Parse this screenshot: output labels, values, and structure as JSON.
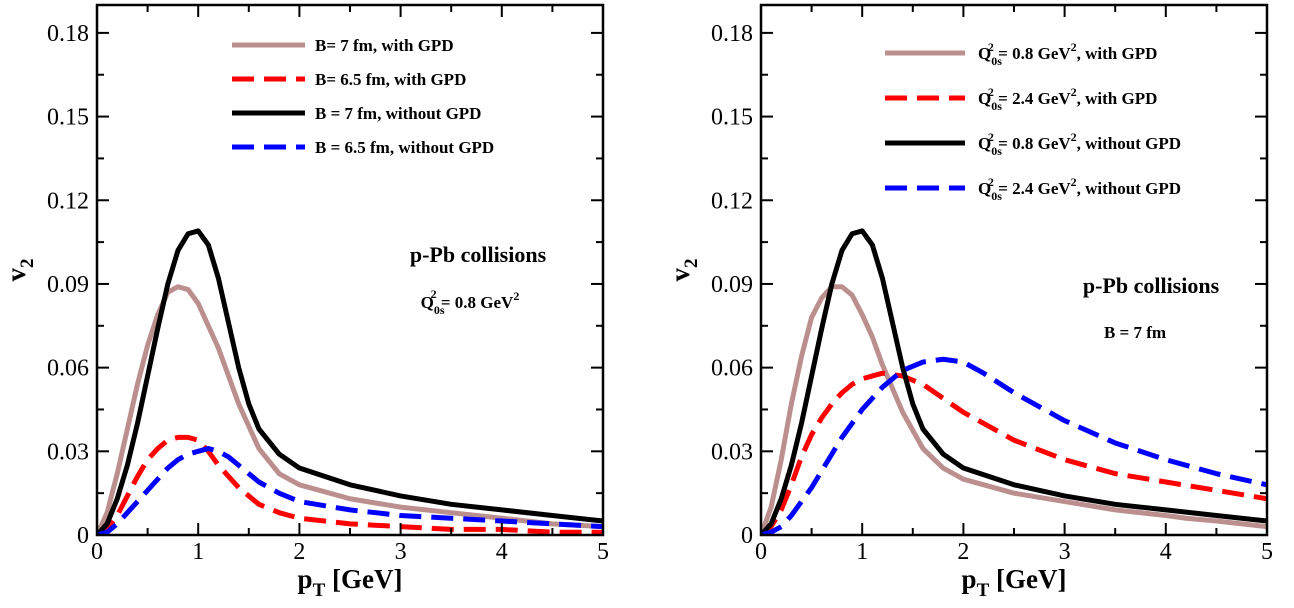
{
  "chart_data": [
    {
      "type": "line",
      "xlabel": "p",
      "xlabel_sub": "T",
      "xlabel_rest": " [GeV]",
      "ylabel": "v",
      "ylabel_sub": "2",
      "xlim": [
        0,
        5
      ],
      "ylim": [
        0,
        0.19
      ],
      "x_ticks": [
        0,
        1,
        2,
        3,
        4,
        5
      ],
      "x_tick_labels": [
        "0",
        "1",
        "2",
        "3",
        "4",
        "5"
      ],
      "y_ticks": [
        0,
        0.03,
        0.06,
        0.09,
        0.12,
        0.15,
        0.18
      ],
      "y_tick_labels": [
        "0",
        "0.03",
        "0.06",
        "0.09",
        "0.12",
        "0.15",
        "0.18"
      ],
      "grid": false,
      "legend_position": "top-right",
      "annotations": {
        "main": "p-Pb collisions",
        "sub": {
          "q": "Q",
          "q_sub": "0s",
          "q_sup": "2",
          "eq": " = 0.8 GeV",
          "unit_sup": "2"
        }
      },
      "series": [
        {
          "label": "B= 7 fm, with GPD",
          "color": "#bc8f8f",
          "style": "solid",
          "x": [
            0,
            0.1,
            0.2,
            0.3,
            0.4,
            0.5,
            0.6,
            0.7,
            0.8,
            0.9,
            1.0,
            1.2,
            1.4,
            1.6,
            1.8,
            2.0,
            2.5,
            3.0,
            3.5,
            4.0,
            4.5,
            5.0
          ],
          "y": [
            0,
            0.008,
            0.022,
            0.038,
            0.054,
            0.068,
            0.079,
            0.087,
            0.089,
            0.088,
            0.083,
            0.067,
            0.047,
            0.031,
            0.022,
            0.018,
            0.013,
            0.01,
            0.008,
            0.006,
            0.004,
            0.003
          ]
        },
        {
          "label": "B= 6.5 fm, with GPD",
          "color": "#ff0000",
          "style": "dashed",
          "x": [
            0,
            0.1,
            0.2,
            0.3,
            0.4,
            0.5,
            0.6,
            0.7,
            0.8,
            0.9,
            1.0,
            1.1,
            1.2,
            1.4,
            1.6,
            1.8,
            2.0,
            2.5,
            3.0,
            3.5,
            4.0,
            4.5,
            5.0
          ],
          "y": [
            0,
            0.002,
            0.007,
            0.014,
            0.021,
            0.027,
            0.031,
            0.034,
            0.035,
            0.035,
            0.034,
            0.03,
            0.025,
            0.017,
            0.011,
            0.008,
            0.006,
            0.004,
            0.003,
            0.002,
            0.002,
            0.001,
            0.001
          ]
        },
        {
          "label": "B = 7 fm, without GPD",
          "color": "#000000",
          "style": "solid",
          "x": [
            0,
            0.1,
            0.2,
            0.3,
            0.4,
            0.5,
            0.6,
            0.7,
            0.8,
            0.9,
            1.0,
            1.1,
            1.2,
            1.3,
            1.4,
            1.5,
            1.6,
            1.8,
            2.0,
            2.5,
            3.0,
            3.5,
            4.0,
            4.5,
            5.0
          ],
          "y": [
            0,
            0.004,
            0.013,
            0.025,
            0.04,
            0.057,
            0.074,
            0.09,
            0.102,
            0.108,
            0.109,
            0.104,
            0.092,
            0.076,
            0.06,
            0.047,
            0.038,
            0.029,
            0.024,
            0.018,
            0.014,
            0.011,
            0.009,
            0.007,
            0.005
          ]
        },
        {
          "label": "B = 6.5 fm, without GPD",
          "color": "#0000ff",
          "style": "dashed",
          "x": [
            0,
            0.1,
            0.2,
            0.3,
            0.4,
            0.5,
            0.6,
            0.7,
            0.8,
            0.9,
            1.0,
            1.1,
            1.2,
            1.3,
            1.4,
            1.6,
            1.8,
            2.0,
            2.5,
            3.0,
            3.5,
            4.0,
            4.5,
            5.0
          ],
          "y": [
            0,
            0.001,
            0.004,
            0.008,
            0.012,
            0.016,
            0.02,
            0.024,
            0.027,
            0.029,
            0.03,
            0.031,
            0.03,
            0.028,
            0.025,
            0.019,
            0.015,
            0.012,
            0.009,
            0.007,
            0.006,
            0.005,
            0.004,
            0.003
          ]
        }
      ]
    },
    {
      "type": "line",
      "xlabel": "p",
      "xlabel_sub": "T",
      "xlabel_rest": " [GeV]",
      "ylabel": "v",
      "ylabel_sub": "2",
      "xlim": [
        0,
        5
      ],
      "ylim": [
        0,
        0.19
      ],
      "x_ticks": [
        0,
        1,
        2,
        3,
        4,
        5
      ],
      "x_tick_labels": [
        "0",
        "1",
        "2",
        "3",
        "4",
        "5"
      ],
      "y_ticks": [
        0,
        0.03,
        0.06,
        0.09,
        0.12,
        0.15,
        0.18
      ],
      "y_tick_labels": [
        "0",
        "0.03",
        "0.06",
        "0.09",
        "0.12",
        "0.15",
        "0.18"
      ],
      "grid": false,
      "legend_position": "top-right",
      "annotations": {
        "main": "p-Pb collisions",
        "sub_text": "B = 7 fm"
      },
      "series": [
        {
          "label_q": "Q",
          "label_q_sub": "0s",
          "label_q_sup": "2",
          "label_eq": " = 0.8 GeV",
          "label_unit_sup": "2",
          "label_rest": ", with GPD",
          "color": "#bc8f8f",
          "style": "solid",
          "x": [
            0,
            0.1,
            0.2,
            0.3,
            0.4,
            0.5,
            0.6,
            0.7,
            0.8,
            0.9,
            1.0,
            1.1,
            1.2,
            1.4,
            1.6,
            1.8,
            2.0,
            2.5,
            3.0,
            3.5,
            4.0,
            4.2,
            4.5,
            5.0
          ],
          "y": [
            0,
            0.01,
            0.027,
            0.047,
            0.064,
            0.078,
            0.085,
            0.089,
            0.089,
            0.086,
            0.079,
            0.071,
            0.061,
            0.044,
            0.031,
            0.024,
            0.02,
            0.015,
            0.012,
            0.009,
            0.007,
            0.006,
            0.005,
            0.003
          ]
        },
        {
          "label_q": "Q",
          "label_q_sub": "0s",
          "label_q_sup": "2",
          "label_eq": " = 2.4 GeV",
          "label_unit_sup": "2",
          "label_rest": ", with GPD",
          "color": "#ff0000",
          "style": "dashed",
          "x": [
            0,
            0.1,
            0.2,
            0.3,
            0.4,
            0.5,
            0.6,
            0.7,
            0.8,
            0.9,
            1.0,
            1.2,
            1.4,
            1.6,
            1.8,
            2.0,
            2.5,
            3.0,
            3.5,
            4.0,
            4.5,
            5.0
          ],
          "y": [
            0,
            0.003,
            0.009,
            0.018,
            0.028,
            0.036,
            0.042,
            0.047,
            0.051,
            0.054,
            0.056,
            0.058,
            0.057,
            0.054,
            0.049,
            0.044,
            0.034,
            0.027,
            0.022,
            0.019,
            0.016,
            0.013
          ]
        },
        {
          "label_q": "Q",
          "label_q_sub": "0s",
          "label_q_sup": "2",
          "label_eq": " = 0.8 GeV",
          "label_unit_sup": "2",
          "label_rest": ", without GPD",
          "color": "#000000",
          "style": "solid",
          "x": [
            0,
            0.1,
            0.2,
            0.3,
            0.4,
            0.5,
            0.6,
            0.7,
            0.8,
            0.9,
            1.0,
            1.1,
            1.2,
            1.3,
            1.4,
            1.5,
            1.6,
            1.8,
            2.0,
            2.5,
            3.0,
            3.5,
            4.0,
            4.5,
            5.0
          ],
          "y": [
            0,
            0.004,
            0.013,
            0.025,
            0.04,
            0.057,
            0.074,
            0.09,
            0.102,
            0.108,
            0.109,
            0.104,
            0.092,
            0.076,
            0.06,
            0.047,
            0.038,
            0.029,
            0.024,
            0.018,
            0.014,
            0.011,
            0.009,
            0.007,
            0.005
          ]
        },
        {
          "label_q": "Q",
          "label_q_sub": "0s",
          "label_q_sup": "2",
          "label_eq": " = 2.4 GeV",
          "label_unit_sup": "2",
          "label_rest": ", without GPD",
          "color": "#0000ff",
          "style": "dashed",
          "x": [
            0,
            0.1,
            0.2,
            0.3,
            0.4,
            0.5,
            0.6,
            0.7,
            0.8,
            0.9,
            1.0,
            1.2,
            1.4,
            1.6,
            1.8,
            2.0,
            2.2,
            2.5,
            3.0,
            3.5,
            4.0,
            4.5,
            5.0
          ],
          "y": [
            0,
            0.001,
            0.003,
            0.007,
            0.012,
            0.017,
            0.023,
            0.029,
            0.035,
            0.04,
            0.045,
            0.053,
            0.059,
            0.062,
            0.063,
            0.062,
            0.058,
            0.051,
            0.041,
            0.033,
            0.027,
            0.022,
            0.018
          ]
        }
      ]
    }
  ]
}
